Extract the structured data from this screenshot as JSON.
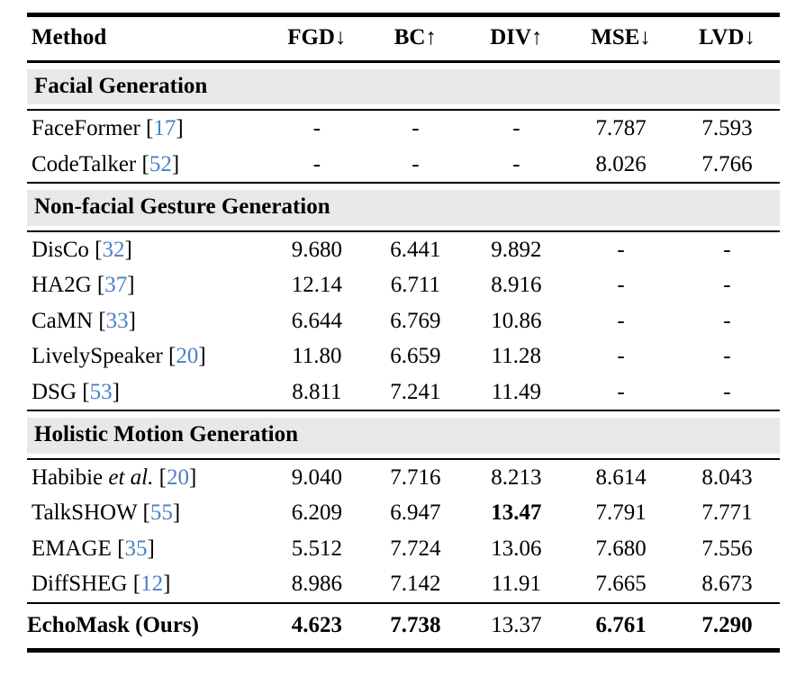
{
  "colors": {
    "citation_blue": "#4a80c4",
    "section_background": "#e8e8e8",
    "rule_black": "#000000"
  },
  "citation": {
    "open": "[",
    "close": "]"
  },
  "header": {
    "columns": [
      {
        "label": "Method",
        "arrow": ""
      },
      {
        "label": "FGD",
        "arrow": "↓"
      },
      {
        "label": "BC",
        "arrow": "↑"
      },
      {
        "label": "DIV",
        "arrow": "↑"
      },
      {
        "label": "MSE",
        "arrow": "↓"
      },
      {
        "label": "LVD",
        "arrow": "↓"
      }
    ]
  },
  "sections": [
    {
      "title": "Facial Generation",
      "rows": [
        {
          "name": "FaceFormer",
          "cite": "17",
          "cells": [
            {
              "v": "-"
            },
            {
              "v": "-"
            },
            {
              "v": "-"
            },
            {
              "v": "7.787"
            },
            {
              "v": "7.593"
            }
          ]
        },
        {
          "name": "CodeTalker",
          "cite": "52",
          "cells": [
            {
              "v": "-"
            },
            {
              "v": "-"
            },
            {
              "v": "-"
            },
            {
              "v": "8.026"
            },
            {
              "v": "7.766"
            }
          ]
        }
      ]
    },
    {
      "title": "Non-facial Gesture Generation",
      "rows": [
        {
          "name": "DisCo",
          "cite": "32",
          "cells": [
            {
              "v": "9.680"
            },
            {
              "v": "6.441"
            },
            {
              "v": "9.892"
            },
            {
              "v": "-"
            },
            {
              "v": "-"
            }
          ]
        },
        {
          "name": "HA2G",
          "cite": "37",
          "cells": [
            {
              "v": "12.14"
            },
            {
              "v": "6.711"
            },
            {
              "v": "8.916"
            },
            {
              "v": "-"
            },
            {
              "v": "-"
            }
          ]
        },
        {
          "name": "CaMN",
          "cite": "33",
          "cells": [
            {
              "v": "6.644"
            },
            {
              "v": "6.769"
            },
            {
              "v": "10.86"
            },
            {
              "v": "-"
            },
            {
              "v": "-"
            }
          ]
        },
        {
          "name": "LivelySpeaker",
          "cite": "20",
          "cells": [
            {
              "v": "11.80"
            },
            {
              "v": "6.659"
            },
            {
              "v": "11.28"
            },
            {
              "v": "-"
            },
            {
              "v": "-"
            }
          ]
        },
        {
          "name": "DSG",
          "cite": "53",
          "cells": [
            {
              "v": "8.811"
            },
            {
              "v": "7.241"
            },
            {
              "v": "11.49"
            },
            {
              "v": "-"
            },
            {
              "v": "-"
            }
          ]
        }
      ]
    },
    {
      "title": "Holistic Motion Generation",
      "rows": [
        {
          "name": "Habibie",
          "name_italic": "et al.",
          "cite": "20",
          "cells": [
            {
              "v": "9.040"
            },
            {
              "v": "7.716"
            },
            {
              "v": "8.213"
            },
            {
              "v": "8.614"
            },
            {
              "v": "8.043"
            }
          ]
        },
        {
          "name": "TalkSHOW",
          "cite": "55",
          "cells": [
            {
              "v": "6.209"
            },
            {
              "v": "6.947"
            },
            {
              "v": "13.47",
              "b": true
            },
            {
              "v": "7.791"
            },
            {
              "v": "7.771"
            }
          ]
        },
        {
          "name": "EMAGE",
          "cite": "35",
          "cells": [
            {
              "v": "5.512"
            },
            {
              "v": "7.724"
            },
            {
              "v": "13.06"
            },
            {
              "v": "7.680"
            },
            {
              "v": "7.556"
            }
          ]
        },
        {
          "name": "DiffSHEG",
          "cite": "12",
          "cells": [
            {
              "v": "8.986"
            },
            {
              "v": "7.142"
            },
            {
              "v": "11.91"
            },
            {
              "v": "7.665"
            },
            {
              "v": "8.673"
            }
          ]
        }
      ]
    }
  ],
  "final_row": {
    "name": "EchoMask (Ours)",
    "cells": [
      {
        "v": "4.623",
        "b": true
      },
      {
        "v": "7.738",
        "b": true
      },
      {
        "v": "13.37"
      },
      {
        "v": "6.761",
        "b": true
      },
      {
        "v": "7.290",
        "b": true
      }
    ]
  }
}
